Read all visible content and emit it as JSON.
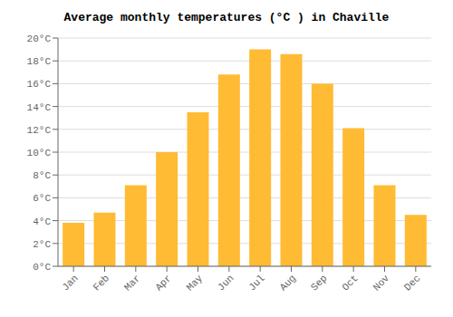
{
  "chart_data": {
    "type": "bar",
    "title": "Average monthly temperatures (°C ) in Chaville",
    "categories": [
      "Jan",
      "Feb",
      "Mar",
      "Apr",
      "May",
      "Jun",
      "Jul",
      "Aug",
      "Sep",
      "Oct",
      "Nov",
      "Dec"
    ],
    "values": [
      3.8,
      4.7,
      7.1,
      10.0,
      13.5,
      16.8,
      19.0,
      18.6,
      16.0,
      12.1,
      7.1,
      4.5
    ],
    "color": "#FFBB33",
    "ylim": [
      0,
      20
    ],
    "yticks": [
      {
        "value": 0,
        "label": "0°C"
      },
      {
        "value": 2,
        "label": "2°C"
      },
      {
        "value": 4,
        "label": "4°C"
      },
      {
        "value": 6,
        "label": "6°C"
      },
      {
        "value": 8,
        "label": "8°C"
      },
      {
        "value": 10,
        "label": "10°C"
      },
      {
        "value": 12,
        "label": "12°C"
      },
      {
        "value": 14,
        "label": "14°C"
      },
      {
        "value": 16,
        "label": "16°C"
      },
      {
        "value": 18,
        "label": "18°C"
      },
      {
        "value": 20,
        "label": "20°C"
      }
    ],
    "grid": true
  }
}
